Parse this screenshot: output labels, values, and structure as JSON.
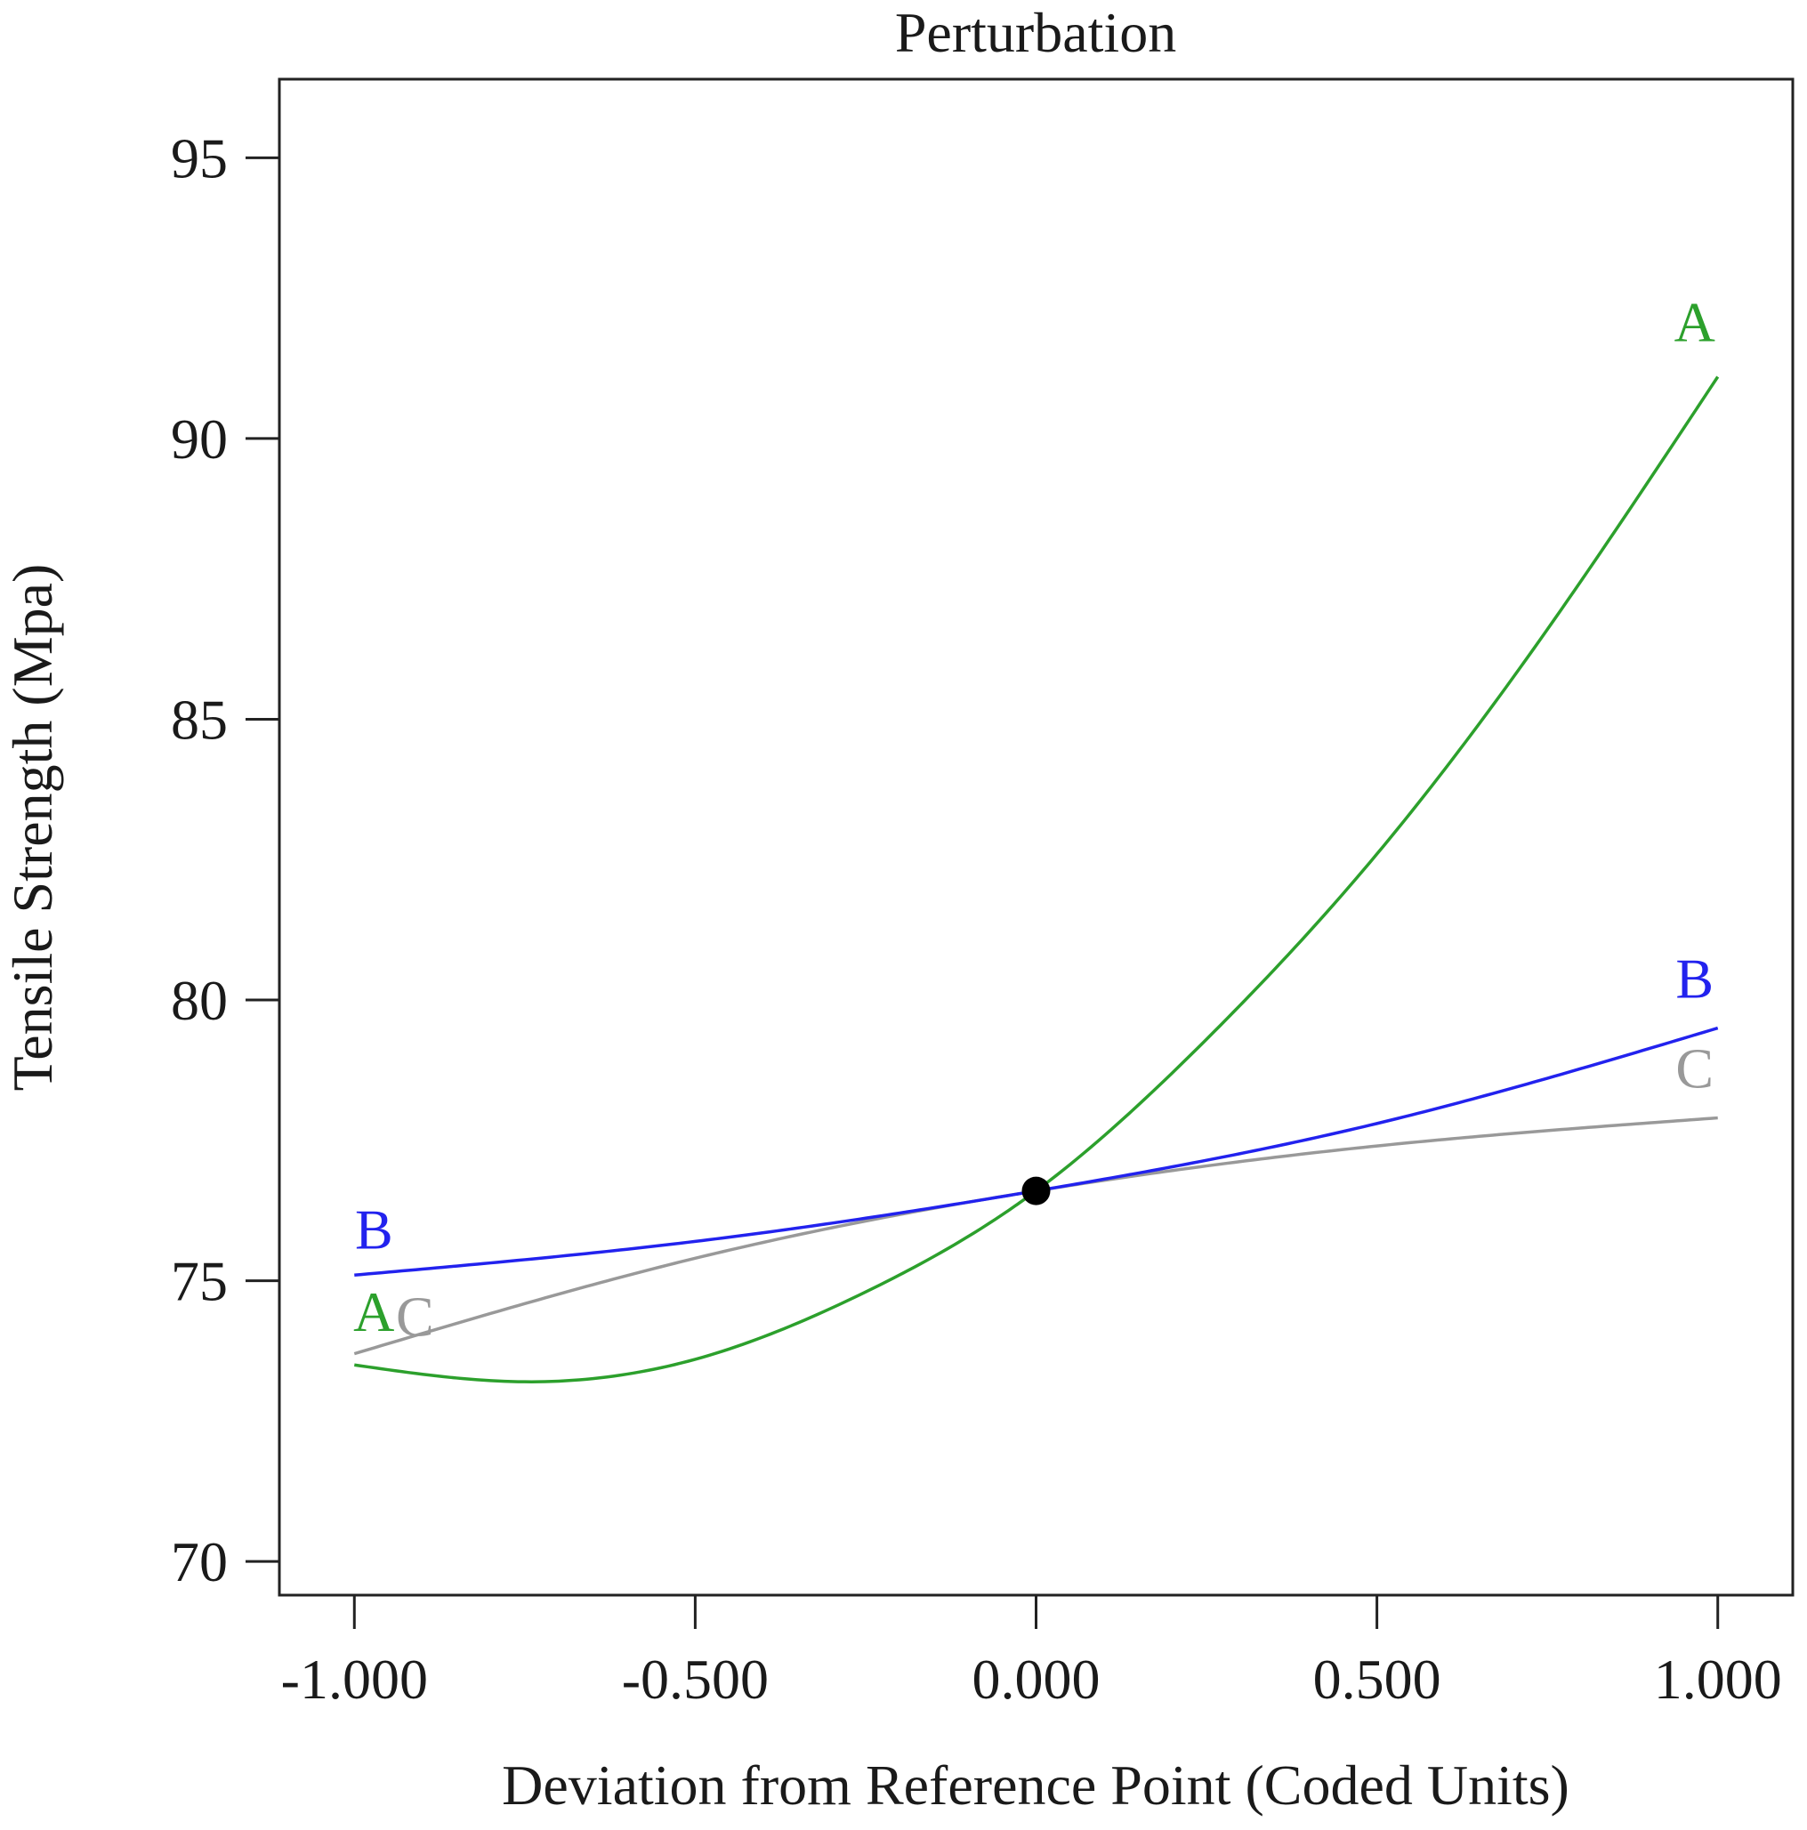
{
  "chart_data": {
    "type": "line",
    "title": "Perturbation",
    "xlabel": "Deviation from Reference Point (Coded Units)",
    "ylabel": "Tensile Strength (Mpa)",
    "xlim": [
      -1.11,
      1.11
    ],
    "ylim": [
      69.4,
      96.4
    ],
    "x_ticks": [
      -1.0,
      -0.5,
      0.0,
      0.5,
      1.0
    ],
    "x_tick_labels": [
      "-1.000",
      "-0.500",
      "0.000",
      "0.500",
      "1.000"
    ],
    "y_ticks": [
      70,
      75,
      80,
      85,
      90,
      95
    ],
    "y_tick_labels": [
      "70",
      "75",
      "80",
      "85",
      "90",
      "95"
    ],
    "grid": false,
    "reference_point": {
      "x": 0.0,
      "y": 76.6
    },
    "series": [
      {
        "name": "A",
        "color": "#2ca02c",
        "x": [
          -1.0,
          -0.75,
          -0.5,
          -0.25,
          0.0,
          0.25,
          0.5,
          0.75,
          1.0
        ],
        "y": [
          73.5,
          73.2,
          73.6,
          74.8,
          76.6,
          79.3,
          82.6,
          86.6,
          91.1
        ]
      },
      {
        "name": "B",
        "color": "#2222ee",
        "x": [
          -1.0,
          -0.5,
          0.0,
          0.5,
          1.0
        ],
        "y": [
          75.1,
          75.7,
          76.6,
          77.8,
          79.5
        ]
      },
      {
        "name": "C",
        "color": "#999999",
        "x": [
          -1.0,
          -0.5,
          0.0,
          0.5,
          1.0
        ],
        "y": [
          73.7,
          75.4,
          76.6,
          77.4,
          77.9
        ]
      }
    ]
  }
}
